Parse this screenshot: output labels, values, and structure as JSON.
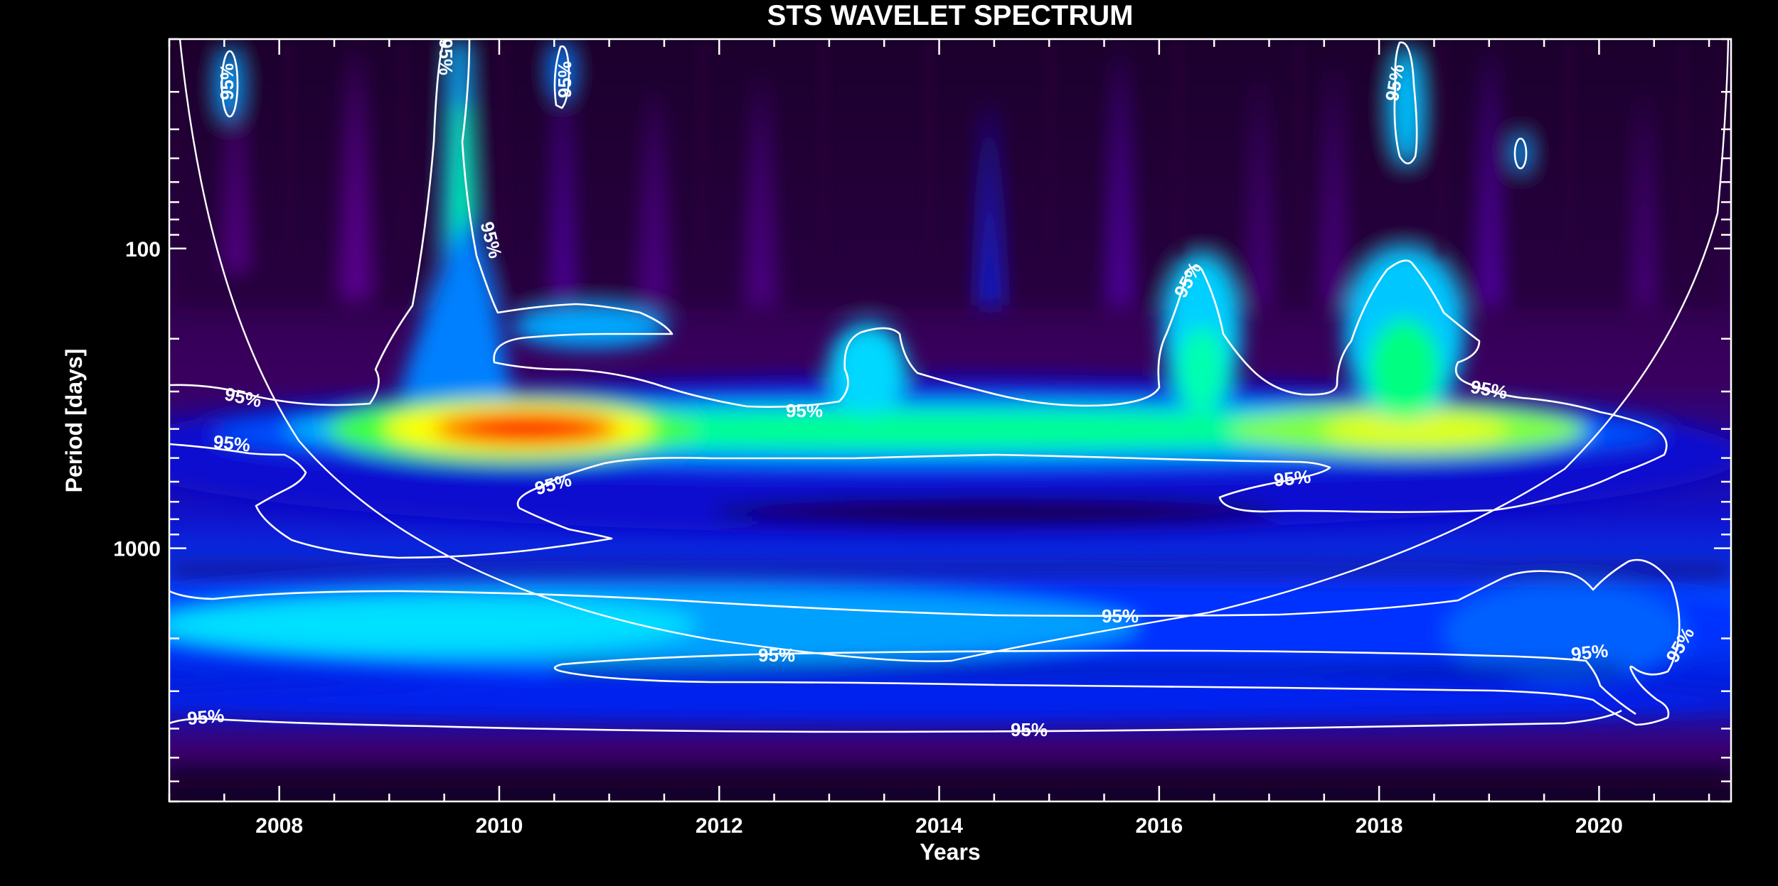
{
  "chart_data": {
    "type": "heatmap",
    "title": "STS WAVELET SPECTRUM",
    "xlabel": "Years",
    "ylabel": "Period [days]",
    "xlim": [
      2007.0,
      2021.2
    ],
    "ylim": [
      20,
      7000
    ],
    "y_scale": "log",
    "y_inverted": true,
    "x_ticks": [
      "2008",
      "2010",
      "2012",
      "2014",
      "2016",
      "2018",
      "2020"
    ],
    "y_ticks": [
      "100",
      "1000"
    ],
    "contour_label": "95%",
    "colormap": [
      "#000000",
      "#3a0050",
      "#7b00b0",
      "#0000ff",
      "#00e0ff",
      "#00ff60",
      "#ffff00",
      "#ff0000"
    ],
    "line_color": "#ffffff"
  }
}
